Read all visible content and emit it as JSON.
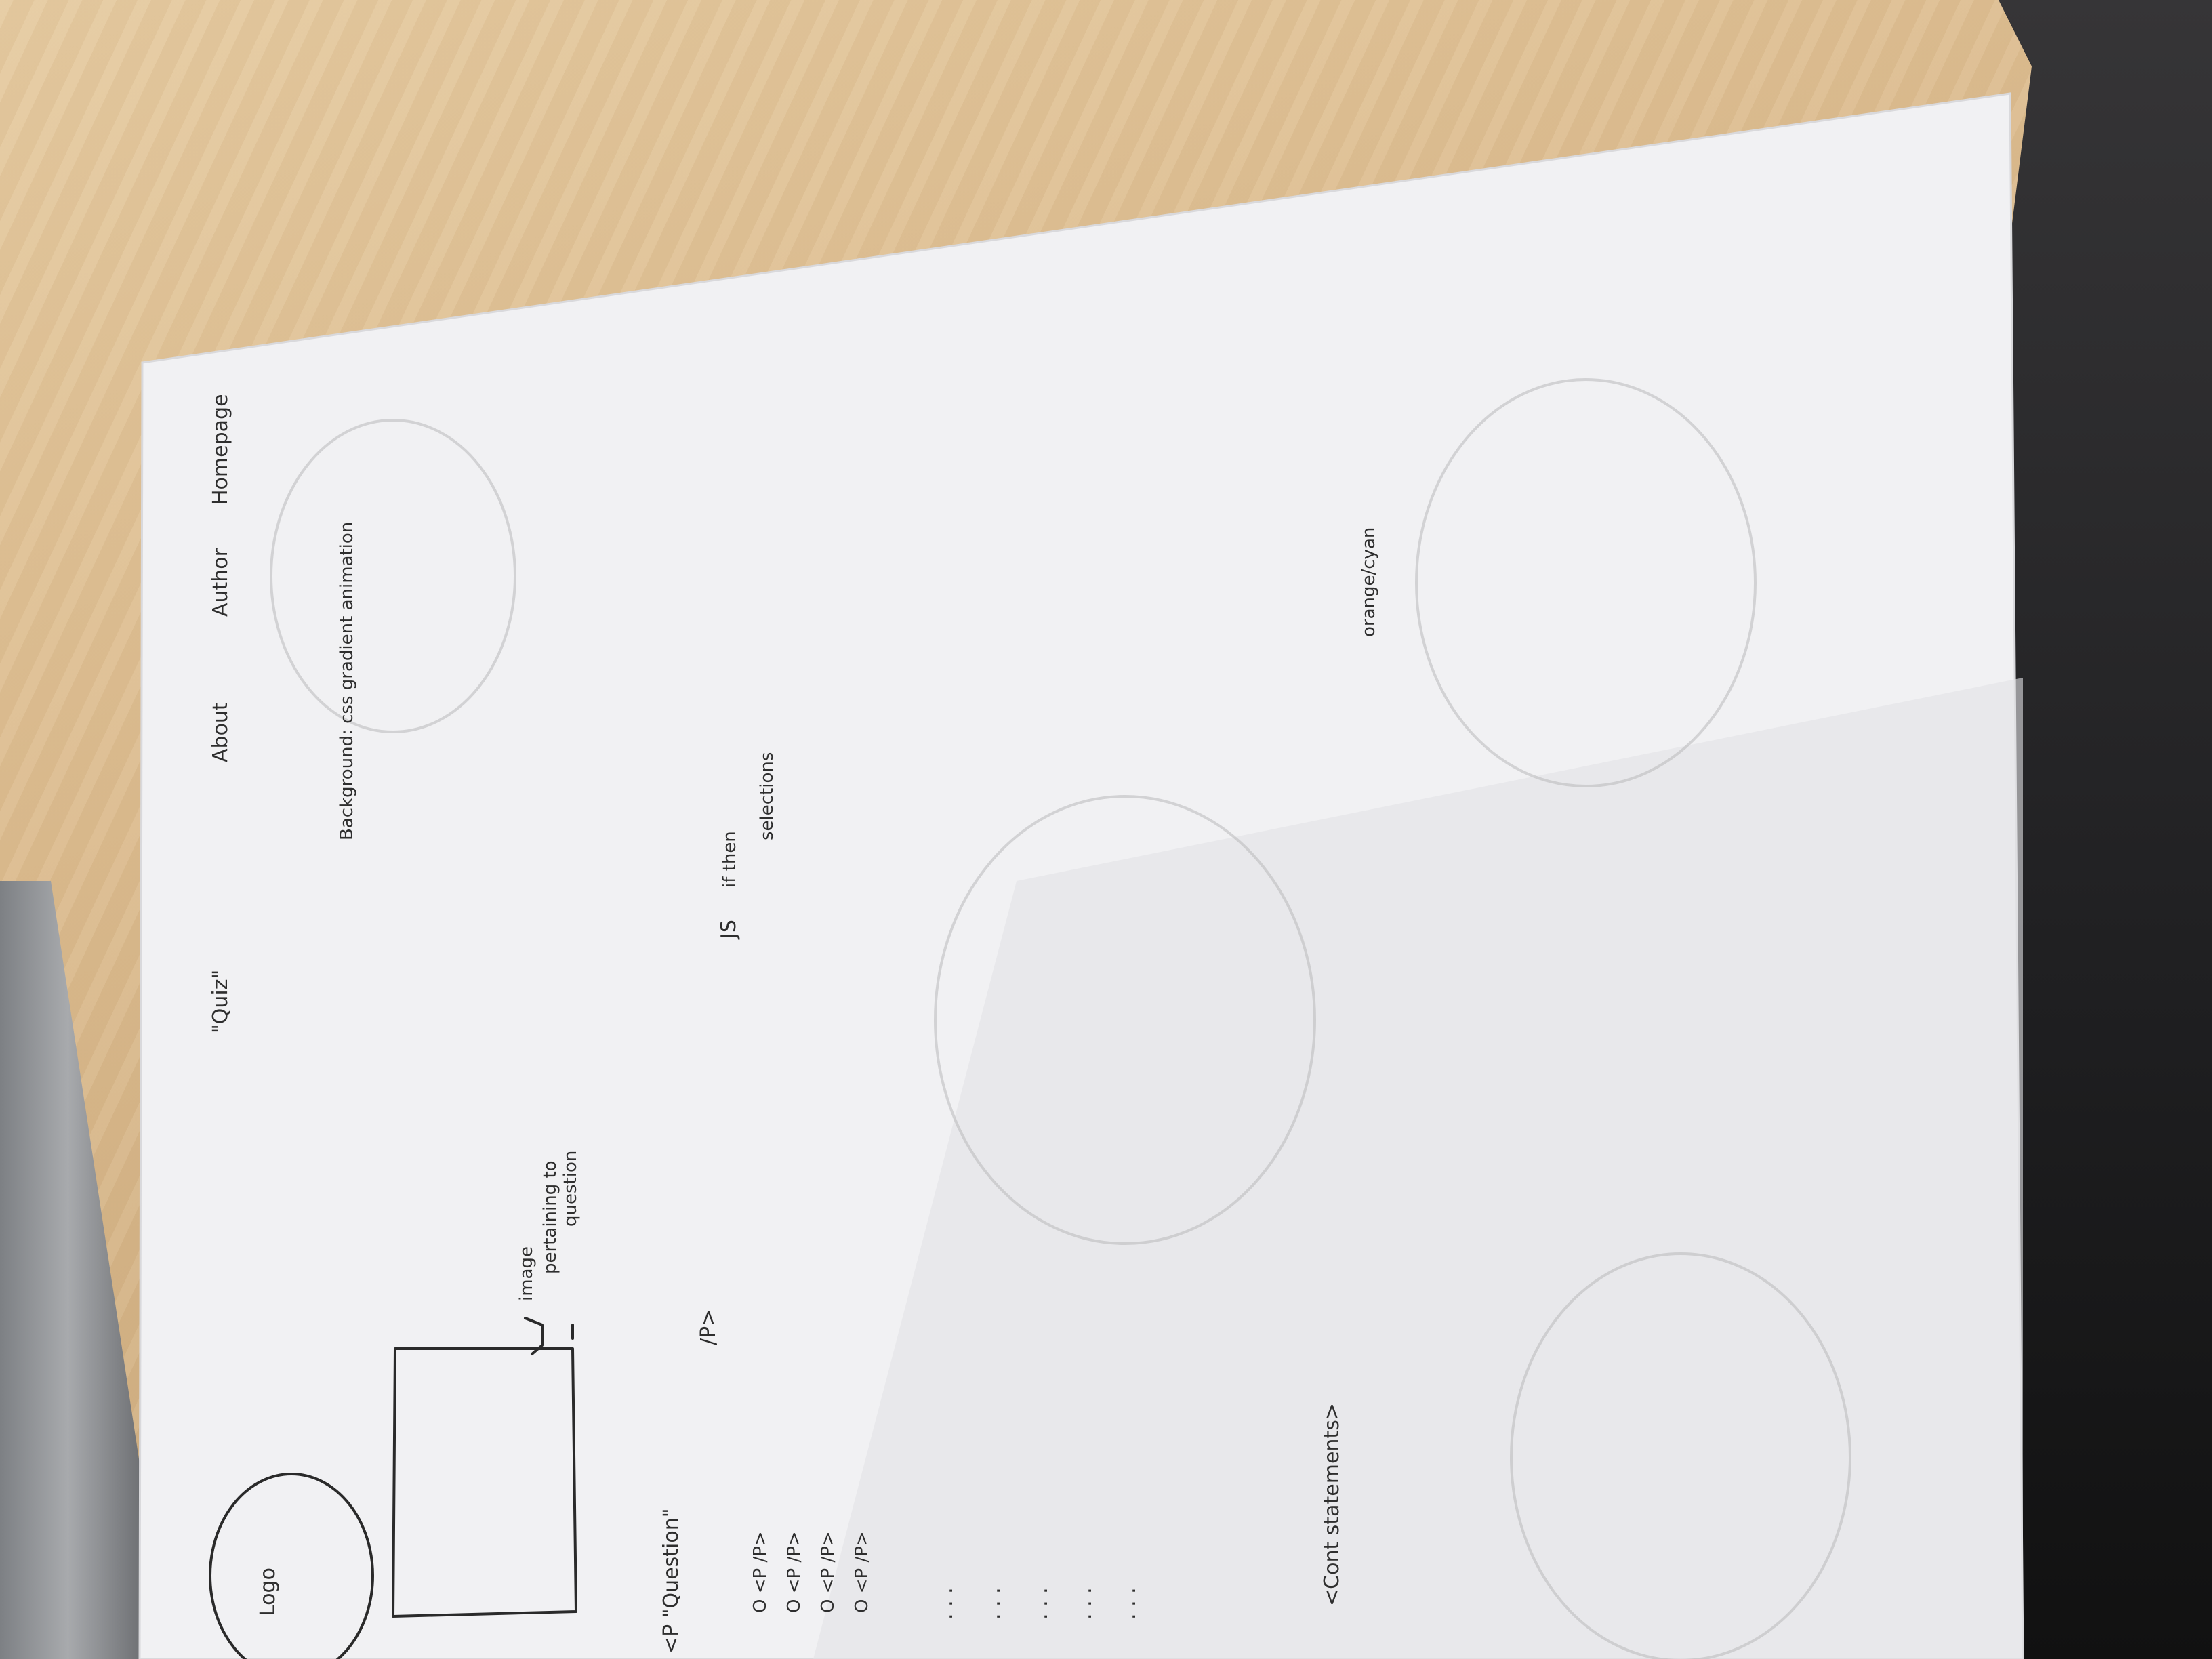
{
  "nav": {
    "quiz_label": "\"Quiz\"",
    "about_label": "About",
    "author_label": "Author",
    "homepage_label": "Homepage"
  },
  "header": {
    "logo_label": "Logo"
  },
  "image": {
    "annotation_line1": "image",
    "annotation_line2": "pertaining to",
    "annotation_line3": "question"
  },
  "notes": {
    "background_line1": "Background: css gradient animation",
    "background_line2": "orange/cyan",
    "js_label": "JS",
    "js_line1": "if then",
    "js_line2": "selections"
  },
  "quiz": {
    "question_open": "<P \"Question\"",
    "question_close": "/P>",
    "options": [
      "O <P  /P>",
      "O <P  /P>",
      "O <P  /P>",
      "O <P  /P>"
    ],
    "ellipses": [
      ". . .",
      ". . .",
      ". . .",
      ". . .",
      ". . ."
    ]
  },
  "footer": {
    "statements_label": "<Cont  statements>"
  }
}
